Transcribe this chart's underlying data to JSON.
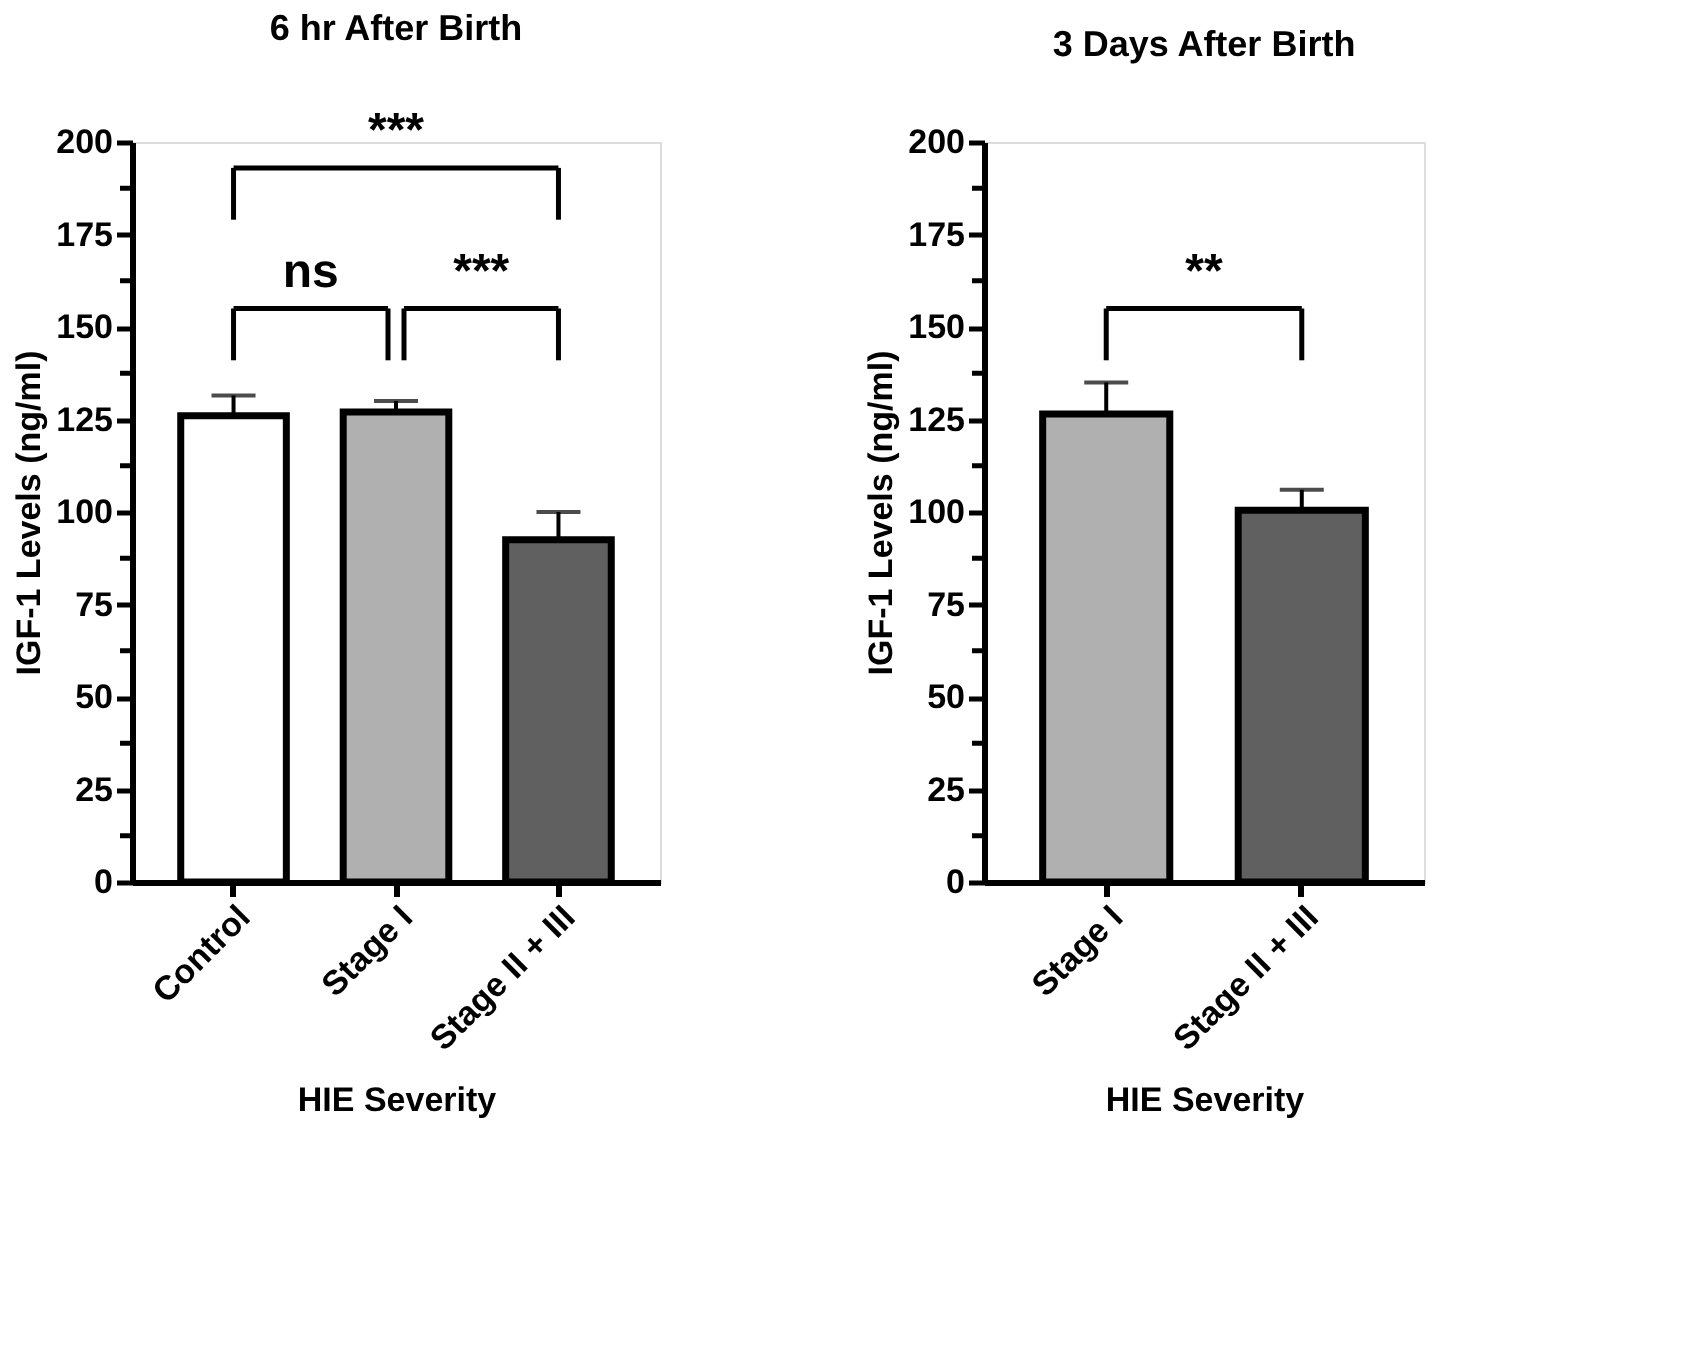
{
  "chart_data": [
    {
      "type": "bar",
      "title": "6 hr After Birth",
      "xlabel": "HIE Severity",
      "ylabel": "IGF-1 Levels (ng/ml)",
      "categories": [
        "Control",
        "Stage I",
        "Stage II + III"
      ],
      "values": [
        126,
        127,
        92.5
      ],
      "colors": [
        "#ffffff",
        "#b0b0b1",
        "#606060"
      ],
      "errors": [
        [
          126,
          131.5
        ],
        [
          127,
          130
        ],
        [
          92.5,
          100
        ]
      ],
      "ylim": [
        0,
        200
      ],
      "yticks": [
        0,
        {
          "value": 12.5,
          "label": null
        },
        25,
        {
          "value": 37.5,
          "label": null
        },
        50,
        {
          "value": 62.5,
          "label": null
        },
        75,
        {
          "value": 87.5,
          "label": null
        },
        100,
        {
          "value": 112.5,
          "label": null
        },
        125,
        {
          "value": 137.5,
          "label": null
        },
        150,
        {
          "value": 162.5,
          "label": null
        },
        175,
        {
          "value": 187.5,
          "label": null
        },
        200
      ],
      "annotations": [
        "***",
        "ns",
        "***"
      ],
      "grid": false
    },
    {
      "type": "bar",
      "title": "3 Days After Birth",
      "xlabel": "HIE Severity",
      "ylabel": "IGF-1 Levels (ng/ml)",
      "categories": [
        "Stage I",
        "Stage II + III"
      ],
      "values": [
        126.5,
        100.5
      ],
      "colors": [
        "#b0b0b1",
        "#606060"
      ],
      "errors": [
        [
          126.5,
          135
        ],
        [
          100.5,
          106
        ]
      ],
      "ylim": [
        0,
        200
      ],
      "yticks": [
        0,
        {
          "value": 12.5,
          "label": null
        },
        25,
        {
          "value": 37.5,
          "label": null
        },
        50,
        {
          "value": 62.5,
          "label": null
        },
        75,
        {
          "value": 87.5,
          "label": null
        },
        100,
        {
          "value": 112.5,
          "label": null
        },
        125,
        {
          "value": 137.5,
          "label": null
        },
        150,
        {
          "value": 162.5,
          "label": null
        },
        175,
        {
          "value": 187.5,
          "label": null
        },
        200
      ],
      "annotations": [
        "**"
      ],
      "grid": false
    }
  ]
}
